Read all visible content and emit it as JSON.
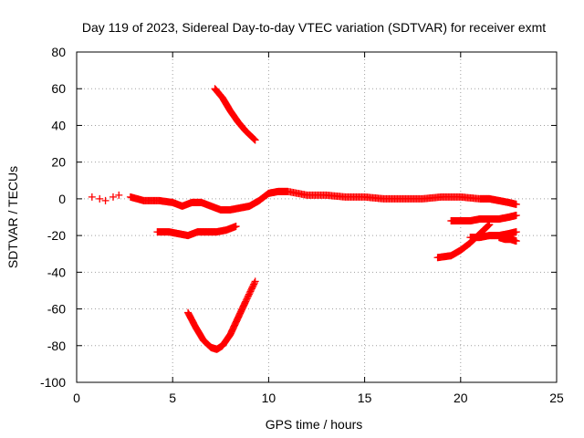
{
  "chart_data": {
    "type": "scatter",
    "title": "Day 119 of 2023, Sidereal Day-to-day VTEC variation (SDTVAR) for receiver exmt",
    "xlabel": "GPS time / hours",
    "ylabel": "SDTVAR / TECUs",
    "xlim": [
      0,
      25
    ],
    "ylim": [
      -100,
      80
    ],
    "xticks": [
      0,
      5,
      10,
      15,
      20,
      25
    ],
    "yticks": [
      -100,
      -80,
      -60,
      -40,
      -20,
      0,
      20,
      40,
      60,
      80
    ],
    "grid": true,
    "marker": "+",
    "color": "#ff0000",
    "series": [
      {
        "name": "early-scatter",
        "x": [
          0.8,
          1.2,
          1.5,
          1.9,
          2.2
        ],
        "y": [
          1,
          0,
          -1,
          1,
          2
        ]
      },
      {
        "name": "main-near-zero",
        "x": [
          2.8,
          3.5,
          4.3,
          5.0,
          5.5,
          6.0,
          6.5,
          7.0,
          7.5,
          8.0,
          8.5,
          9.0,
          9.5,
          10.0,
          10.5,
          11.0,
          12.0,
          13.0,
          14.0,
          15.0,
          16.0,
          17.0,
          18.0,
          19.0,
          20.0,
          21.0,
          21.5,
          22.0,
          22.5,
          22.9
        ],
        "y": [
          1,
          -1,
          -1,
          -2,
          -4,
          -2,
          -2,
          -4,
          -6,
          -6,
          -5,
          -4,
          -1,
          3,
          4,
          4,
          2,
          2,
          1,
          1,
          0,
          0,
          0,
          1,
          1,
          0,
          0,
          -1,
          -2,
          -3
        ]
      },
      {
        "name": "band-minus-18",
        "x": [
          4.2,
          4.8,
          5.3,
          5.8,
          6.3,
          6.8,
          7.3,
          7.8,
          8.3
        ],
        "y": [
          -18,
          -18,
          -19,
          -20,
          -18,
          -18,
          -18,
          -17,
          -15
        ]
      },
      {
        "name": "upper-arc",
        "x": [
          7.2,
          7.6,
          8.0,
          8.4,
          8.8,
          9.3
        ],
        "y": [
          60,
          55,
          48,
          42,
          37,
          32
        ]
      },
      {
        "name": "lower-valley",
        "x": [
          5.8,
          6.2,
          6.6,
          7.0,
          7.3,
          7.6,
          8.0,
          8.4,
          8.8,
          9.3
        ],
        "y": [
          -62,
          -70,
          -77,
          -81,
          -82,
          -80,
          -74,
          -65,
          -56,
          -45
        ]
      },
      {
        "name": "band-minus-11",
        "x": [
          19.5,
          20.0,
          20.5,
          21.0,
          21.5,
          22.0,
          22.5,
          22.9
        ],
        "y": [
          -12,
          -12,
          -12,
          -11,
          -11,
          -11,
          -10,
          -9
        ]
      },
      {
        "name": "rising-segment",
        "x": [
          18.8,
          19.5,
          20.0,
          20.5,
          21.0,
          21.5
        ],
        "y": [
          -32,
          -31,
          -28,
          -24,
          -19,
          -14
        ]
      },
      {
        "name": "band-minus-20",
        "x": [
          20.5,
          21.0,
          21.5,
          22.0,
          22.5,
          22.9
        ],
        "y": [
          -21,
          -21,
          -20,
          -20,
          -19,
          -18
        ]
      },
      {
        "name": "end-tail",
        "x": [
          22.0,
          22.3,
          22.6,
          22.9
        ],
        "y": [
          -21,
          -22,
          -22,
          -23
        ]
      }
    ]
  }
}
